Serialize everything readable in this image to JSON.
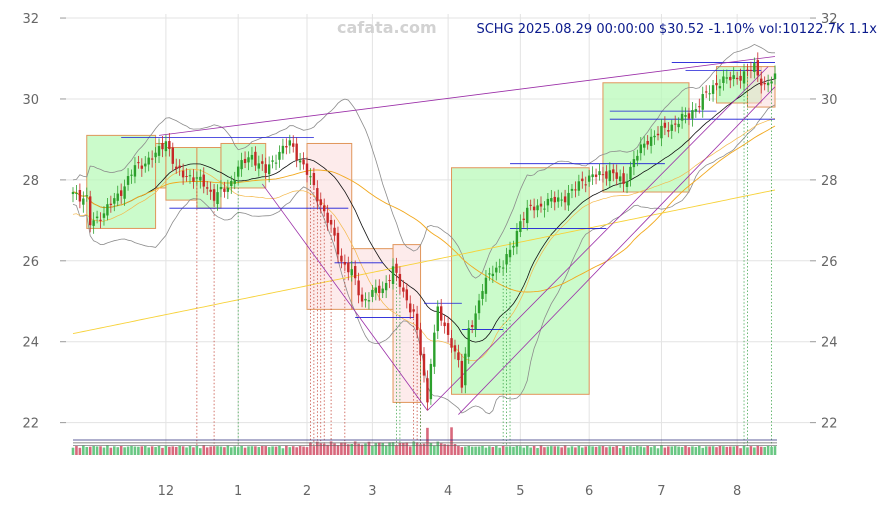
{
  "header": {
    "watermark": "cafata.com",
    "quote": "SCHG 2025.08.29 00:00:00 $30.52 -1.10% vol:10122.7K 1.1x"
  },
  "chart_data": {
    "type": "candlestick",
    "symbol": "SCHG",
    "date": "2025.08.29 00:00:00",
    "last_price": 30.52,
    "change_pct": -1.1,
    "volume": "10122.7K",
    "volume_ratio": "1.1x",
    "ylim": [
      21.2,
      32.1
    ],
    "y_ticks": [
      22,
      24,
      26,
      28,
      30,
      32
    ],
    "x_ticks": [
      {
        "label": "12",
        "pos": 27
      },
      {
        "label": "1",
        "pos": 48
      },
      {
        "label": "2",
        "pos": 68
      },
      {
        "label": "3",
        "pos": 87
      },
      {
        "label": "4",
        "pos": 109
      },
      {
        "label": "5",
        "pos": 130
      },
      {
        "label": "6",
        "pos": 150
      },
      {
        "label": "7",
        "pos": 171
      },
      {
        "label": "8",
        "pos": 193
      }
    ],
    "n_bars": 205,
    "grid": true,
    "price_anchors": [
      [
        0,
        27.7
      ],
      [
        4,
        27.5
      ],
      [
        5,
        26.9
      ],
      [
        9,
        27.2
      ],
      [
        13,
        27.6
      ],
      [
        18,
        28.3
      ],
      [
        24,
        28.6
      ],
      [
        27,
        29.0
      ],
      [
        30,
        28.2
      ],
      [
        34,
        28.1
      ],
      [
        38,
        27.9
      ],
      [
        41,
        27.6
      ],
      [
        45,
        27.8
      ],
      [
        48,
        28.3
      ],
      [
        52,
        28.6
      ],
      [
        56,
        28.2
      ],
      [
        60,
        28.7
      ],
      [
        63,
        28.9
      ],
      [
        66,
        28.5
      ],
      [
        69,
        28.0
      ],
      [
        72,
        27.4
      ],
      [
        75,
        26.8
      ],
      [
        78,
        26.0
      ],
      [
        81,
        25.7
      ],
      [
        84,
        25.0
      ],
      [
        87,
        25.2
      ],
      [
        90,
        25.3
      ],
      [
        93,
        25.8
      ],
      [
        96,
        25.2
      ],
      [
        99,
        24.7
      ],
      [
        101,
        23.7
      ],
      [
        103,
        22.5
      ],
      [
        104,
        23.6
      ],
      [
        106,
        24.8
      ],
      [
        108,
        24.3
      ],
      [
        110,
        24.0
      ],
      [
        112,
        23.5
      ],
      [
        113,
        22.9
      ],
      [
        115,
        24.3
      ],
      [
        117,
        24.7
      ],
      [
        119,
        25.3
      ],
      [
        122,
        25.8
      ],
      [
        125,
        25.9
      ],
      [
        127,
        26.2
      ],
      [
        130,
        27.0
      ],
      [
        133,
        27.3
      ],
      [
        137,
        27.4
      ],
      [
        140,
        27.5
      ],
      [
        144,
        27.6
      ],
      [
        148,
        28.0
      ],
      [
        152,
        28.1
      ],
      [
        156,
        28.2
      ],
      [
        160,
        27.9
      ],
      [
        163,
        28.5
      ],
      [
        167,
        29.0
      ],
      [
        171,
        29.2
      ],
      [
        175,
        29.4
      ],
      [
        179,
        29.6
      ],
      [
        183,
        30.0
      ],
      [
        187,
        30.4
      ],
      [
        191,
        30.5
      ],
      [
        195,
        30.6
      ],
      [
        198,
        30.8
      ],
      [
        201,
        30.3
      ],
      [
        204,
        30.52
      ]
    ],
    "boxes": [
      {
        "start": 4,
        "end": 24,
        "low": 26.8,
        "high": 29.1,
        "dir": "up"
      },
      {
        "start": 24,
        "end": 27,
        "low": 27.8,
        "high": 28.9,
        "dir": "up"
      },
      {
        "start": 27,
        "end": 36,
        "low": 27.5,
        "high": 28.8,
        "dir": "up"
      },
      {
        "start": 36,
        "end": 43,
        "low": 27.3,
        "high": 28.8,
        "dir": "up"
      },
      {
        "start": 43,
        "end": 56,
        "low": 27.8,
        "high": 28.9,
        "dir": "up"
      },
      {
        "start": 68,
        "end": 81,
        "low": 24.8,
        "high": 28.9,
        "dir": "down"
      },
      {
        "start": 81,
        "end": 93,
        "low": 24.8,
        "high": 26.3,
        "dir": "down"
      },
      {
        "start": 93,
        "end": 101,
        "low": 22.5,
        "high": 26.4,
        "dir": "down"
      },
      {
        "start": 110,
        "end": 150,
        "low": 22.7,
        "high": 28.3,
        "dir": "up"
      },
      {
        "start": 154,
        "end": 179,
        "low": 27.7,
        "high": 30.4,
        "dir": "up"
      },
      {
        "start": 187,
        "end": 200,
        "low": 29.9,
        "high": 30.8,
        "dir": "up"
      },
      {
        "start": 196,
        "end": 204,
        "low": 29.8,
        "high": 30.8,
        "dir": "down"
      }
    ],
    "pivot_lines": [
      {
        "start": 14,
        "end": 70,
        "y": 29.05
      },
      {
        "start": 28,
        "end": 80,
        "y": 27.3
      },
      {
        "start": 76,
        "end": 90,
        "y": 25.95
      },
      {
        "start": 82,
        "end": 99,
        "y": 24.6
      },
      {
        "start": 102,
        "end": 113,
        "y": 24.95
      },
      {
        "start": 113,
        "end": 125,
        "y": 24.3
      },
      {
        "start": 127,
        "end": 155,
        "y": 26.8
      },
      {
        "start": 127,
        "end": 172,
        "y": 28.4
      },
      {
        "start": 156,
        "end": 204,
        "y": 29.5
      },
      {
        "start": 156,
        "end": 187,
        "y": 29.7
      },
      {
        "start": 174,
        "end": 204,
        "y": 30.9
      },
      {
        "start": 178,
        "end": 200,
        "y": 30.7
      }
    ],
    "trend_lines": [
      {
        "x1": 25,
        "y1": 29.1,
        "x2": 204,
        "y2": 31.05
      },
      {
        "x1": 55,
        "y1": 27.9,
        "x2": 103,
        "y2": 22.3
      },
      {
        "x1": 103,
        "y1": 22.3,
        "x2": 202,
        "y2": 30.8
      },
      {
        "x1": 112,
        "y1": 22.2,
        "x2": 204,
        "y2": 30.3
      }
    ],
    "vlines_red": [
      36,
      41,
      69,
      70,
      71,
      72,
      73,
      75,
      79,
      99,
      100,
      101
    ],
    "vlines_green": [
      48,
      94,
      95,
      101,
      125,
      126,
      127,
      195,
      196,
      203
    ],
    "horizontal_bottom_lines": [
      21.57,
      21.5,
      21.43
    ],
    "volume_ratios": [
      1.1,
      1.0,
      0.9,
      1.3,
      1.0,
      0.9,
      1.2
    ]
  }
}
